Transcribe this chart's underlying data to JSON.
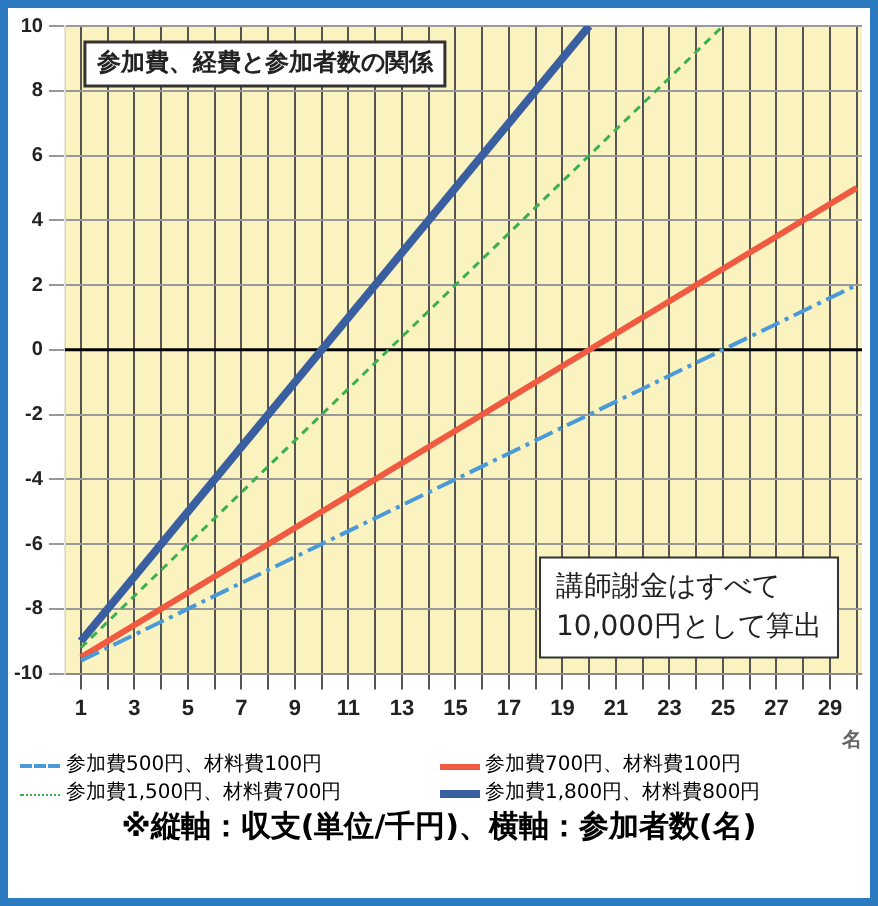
{
  "chart_data": {
    "type": "line",
    "title": "参加費、経費と参加者数の関係",
    "xlabel": "名",
    "series": [
      {
        "name": "参加費500円、材料費100円",
        "color": "#4a9ad8",
        "line_style": "dashed",
        "x": [
          1,
          30
        ],
        "values": [
          -9.6,
          2
        ]
      },
      {
        "name": "参加費700円、材料費100円",
        "color": "#f05a40",
        "line_style": "solid",
        "x": [
          1,
          30
        ],
        "values": [
          -9.5,
          5
        ]
      },
      {
        "name": "参加費1,500円、材料費700円",
        "color": "#3cb050",
        "line_style": "dotted",
        "x": [
          1,
          25
        ],
        "values": [
          -9.2,
          10
        ]
      },
      {
        "name": "参加費1,800円、材料費800円",
        "color": "#3a5fa0",
        "line_style": "solid",
        "x": [
          1,
          20
        ],
        "values": [
          -9,
          10
        ]
      }
    ],
    "xlim": [
      0.4,
      30.2
    ],
    "xticks": [
      1,
      {
        "value": 2,
        "label": null
      },
      3,
      {
        "value": 4,
        "label": null
      },
      5,
      {
        "value": 6,
        "label": null
      },
      7,
      {
        "value": 8,
        "label": null
      },
      9,
      {
        "value": 10,
        "label": null
      },
      11,
      {
        "value": 12,
        "label": null
      },
      13,
      {
        "value": 14,
        "label": null
      },
      15,
      {
        "value": 16,
        "label": null
      },
      17,
      {
        "value": 18,
        "label": null
      },
      19,
      {
        "value": 20,
        "label": null
      },
      21,
      {
        "value": 22,
        "label": null
      },
      23,
      {
        "value": 24,
        "label": null
      },
      25,
      {
        "value": 26,
        "label": null
      },
      27,
      {
        "value": 28,
        "label": null
      },
      29,
      {
        "value": 30,
        "label": null
      }
    ],
    "ylim": [
      -10,
      10
    ],
    "yticks": [
      -10,
      -8,
      -6,
      -4,
      -2,
      0,
      2,
      4,
      6,
      8,
      10
    ],
    "ref_lines": [
      {
        "axis": "y",
        "value": 0,
        "color": "#000000"
      }
    ],
    "grid": true,
    "legend": "bottom",
    "marker": "none",
    "annotations": [
      "講師謝金はすべて\n10,000円として算出",
      "※縦軸：収支(単位/千円)、横軸：参加者数(名)"
    ]
  }
}
